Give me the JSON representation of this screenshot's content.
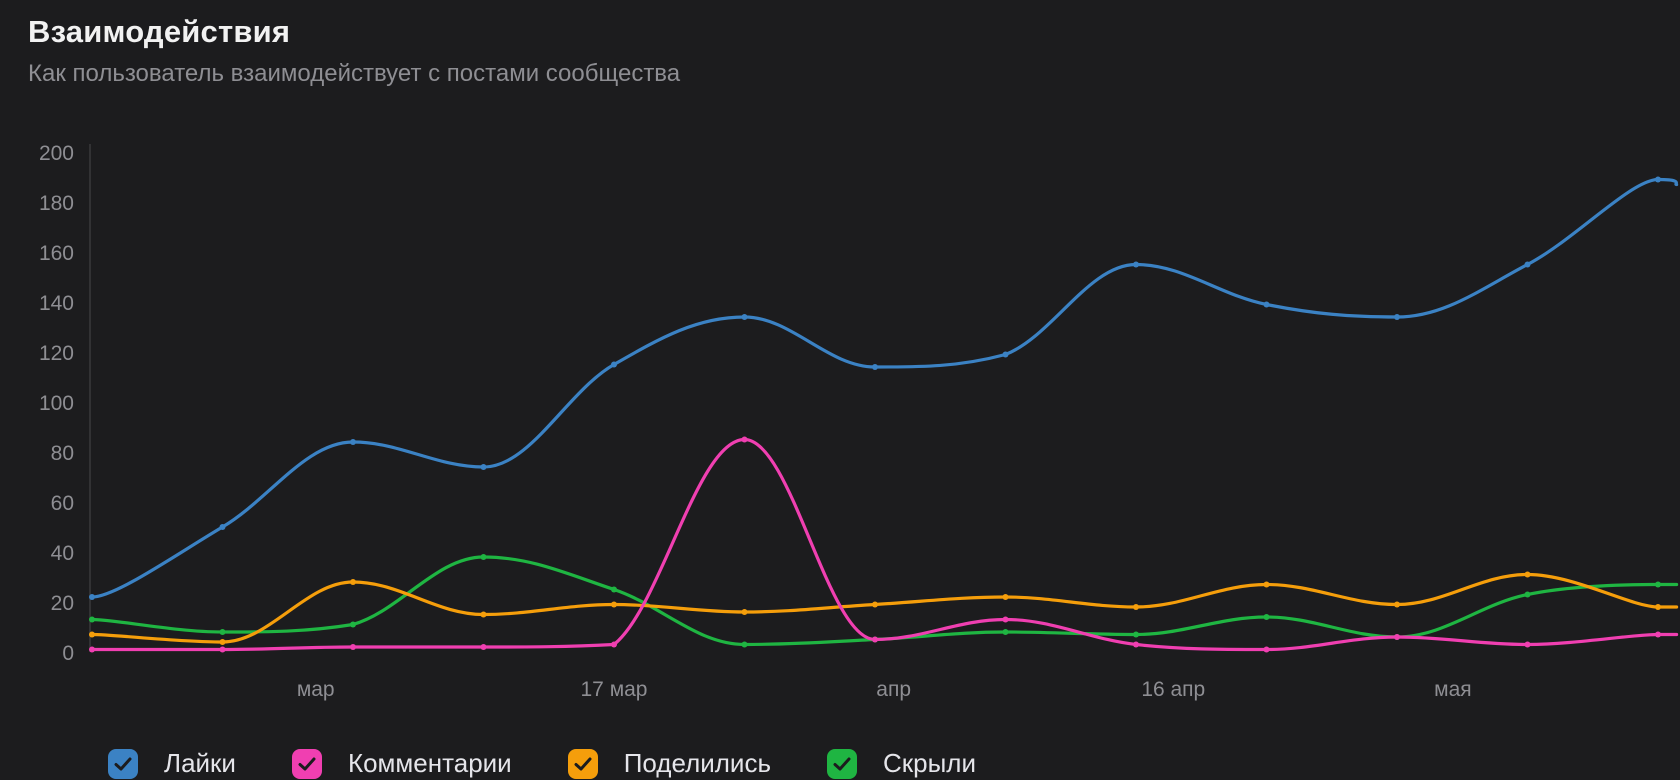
{
  "header": {
    "title": "Взаимодействия",
    "subtitle": "Как пользователь взаимодействует с постами сообщества"
  },
  "legend": [
    {
      "name": "Лайки",
      "color": "#3b82c4",
      "icon": "checkmark-icon",
      "checked": true
    },
    {
      "name": "Комментарии",
      "color": "#f03fb1",
      "icon": "checkmark-icon",
      "checked": true
    },
    {
      "name": "Поделились",
      "color": "#f59e0b",
      "icon": "checkmark-icon",
      "checked": true
    },
    {
      "name": "Скрыли",
      "color": "#1fb542",
      "icon": "checkmark-icon",
      "checked": true
    }
  ],
  "chart_data": {
    "type": "line",
    "title": "Взаимодействия",
    "subtitle": "Как пользователь взаимодействует с постами сообщества",
    "xlabel": "",
    "ylabel": "",
    "ylim": [
      0,
      200
    ],
    "yticks": [
      0,
      20,
      40,
      60,
      80,
      100,
      120,
      140,
      160,
      180,
      200
    ],
    "x": [
      "2024-02-18",
      "2024-02-25",
      "2024-03-03",
      "2024-03-10",
      "2024-03-17",
      "2024-03-24",
      "2024-03-31",
      "2024-04-07",
      "2024-04-14",
      "2024-04-21",
      "2024-04-28",
      "2024-05-05",
      "2024-05-12",
      "2024-05-13"
    ],
    "xtick_labels": [
      {
        "label": "мар",
        "date": "2024-03-01"
      },
      {
        "label": "17 мар",
        "date": "2024-03-17"
      },
      {
        "label": "апр",
        "date": "2024-04-01"
      },
      {
        "label": "16 апр",
        "date": "2024-04-16"
      },
      {
        "label": "мая",
        "date": "2024-05-01"
      }
    ],
    "series": [
      {
        "name": "Лайки",
        "color": "#3b82c4",
        "values": [
          22,
          50,
          84,
          74,
          115,
          134,
          114,
          119,
          155,
          139,
          134,
          155,
          189,
          187
        ]
      },
      {
        "name": "Комментарии",
        "color": "#f03fb1",
        "values": [
          1,
          1,
          2,
          2,
          3,
          85,
          5,
          13,
          3,
          1,
          6,
          3,
          7,
          7
        ]
      },
      {
        "name": "Поделились",
        "color": "#f59e0b",
        "values": [
          7,
          4,
          28,
          15,
          19,
          16,
          19,
          22,
          18,
          27,
          19,
          31,
          18,
          18
        ]
      },
      {
        "name": "Скрыли",
        "color": "#1fb542",
        "values": [
          13,
          8,
          11,
          38,
          25,
          3,
          5,
          8,
          7,
          14,
          6,
          23,
          27,
          27
        ]
      }
    ],
    "grid": false,
    "legend_position": "bottom-left",
    "axis_color": "#3a3a3c",
    "tick_color": "#8e8e93"
  }
}
